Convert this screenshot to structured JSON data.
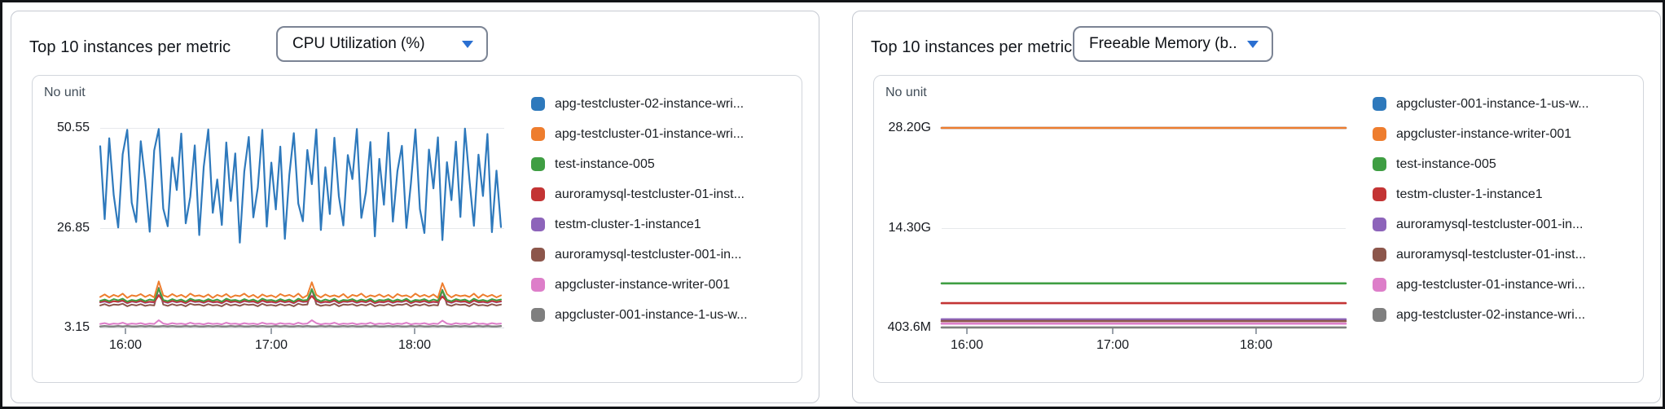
{
  "colors": {
    "blue": "#2e79bc",
    "orange": "#ee7d2e",
    "green": "#3f9e43",
    "red": "#c33434",
    "purple": "#8d64ba",
    "brown": "#8c564b",
    "pink": "#dd7ec9",
    "gray": "#7f7f7f",
    "dropdown_caret": "#2a6fd1"
  },
  "panels": [
    {
      "title": "Top 10 instances per metric",
      "dropdown_label": "CPU Utilization (%)"
    },
    {
      "title": "Top 10 instances per metric",
      "dropdown_label": "Freeable Memory (b..."
    }
  ],
  "chart_data": [
    {
      "type": "line",
      "title": "Top 10 instances per metric",
      "metric": "CPU Utilization (%)",
      "unit_label": "No unit",
      "x_ticks": [
        "16:00",
        "17:00",
        "18:00"
      ],
      "y_ticks": [
        "50.55",
        "26.85",
        "3.15"
      ],
      "y_tick_values": [
        50.55,
        26.85,
        3.15
      ],
      "ylim": [
        2.0,
        52.0
      ],
      "grid": true,
      "legend_position": "right",
      "draw_order": "reverse",
      "series": [
        {
          "name": "apg-testcluster-02-instance-wri...",
          "color": "#2e79bc",
          "width": 2.2,
          "values": [
            46.2,
            28.9,
            48.1,
            34.6,
            26.9,
            44.3,
            50.1,
            32.8,
            28.2,
            47.4,
            38.1,
            25.9,
            45.2,
            50.3,
            31.4,
            27.2,
            43.5,
            35.8,
            49.2,
            27.9,
            34.2,
            46.4,
            25.1,
            41.3,
            50.2,
            30.4,
            38.3,
            27.5,
            47.1,
            33.2,
            44.5,
            23.3,
            40.2,
            48.4,
            29.3,
            36.4,
            50.1,
            27.1,
            42.3,
            31.2,
            46.1,
            24.2,
            39.4,
            49.3,
            32.6,
            28.4,
            45.3,
            37.2,
            50.2,
            26.3,
            41.2,
            30.1,
            48.2,
            34.3,
            27.4,
            44.1,
            38.4,
            50.3,
            29.2,
            35.3,
            47.2,
            24.8,
            43.2,
            32.3,
            49.4,
            28.3,
            40.3,
            46.3,
            26.8,
            37.3,
            50.2,
            31.3,
            25.6,
            45.4,
            36.2,
            48.3,
            23.9,
            42.4,
            33.4,
            47.3,
            29.4,
            50.4,
            38.2,
            27.3,
            44.2,
            34.4,
            49.1,
            25.8,
            40.4,
            27.0
          ]
        },
        {
          "name": "apg-testcluster-01-instance-wri...",
          "color": "#ee7d2e",
          "width": 2,
          "values": [
            10.4,
            11.0,
            10.3,
            10.9,
            10.5,
            11.2,
            10.2,
            10.8,
            10.6,
            11.1,
            10.4,
            10.9,
            10.3,
            14.1,
            10.8,
            10.4,
            11.1,
            10.5,
            10.9,
            10.3,
            11.2,
            10.6,
            10.8,
            10.4,
            11.0,
            10.2,
            10.9,
            10.5,
            11.1,
            10.3,
            10.8,
            10.6,
            11.2,
            10.4,
            10.9,
            10.2,
            11.0,
            10.5,
            10.8,
            10.3,
            11.1,
            10.6,
            10.9,
            10.4,
            11.2,
            10.2,
            10.8,
            13.9,
            10.9,
            10.3,
            11.0,
            10.5,
            10.8,
            10.4,
            11.1,
            10.2,
            10.9,
            10.6,
            11.2,
            10.3,
            10.8,
            10.5,
            11.0,
            10.4,
            10.9,
            10.2,
            11.1,
            10.6,
            10.8,
            10.3,
            11.2,
            10.5,
            10.9,
            10.4,
            11.0,
            10.2,
            13.7,
            11.1,
            10.3,
            10.9,
            10.6,
            10.8,
            10.4,
            11.2,
            10.2,
            11.0,
            10.5,
            10.9,
            10.3,
            10.8
          ]
        },
        {
          "name": "test-instance-005",
          "color": "#3f9e43",
          "width": 2,
          "values": [
            9.5,
            9.8,
            9.4,
            9.9,
            9.6,
            10.0,
            9.3,
            9.7,
            9.5,
            9.9,
            9.4,
            9.8,
            9.6,
            12.4,
            9.7,
            9.4,
            9.9,
            9.5,
            9.8,
            9.3,
            10.0,
            9.6,
            9.7,
            9.4,
            9.9,
            9.5,
            9.8,
            9.3,
            10.0,
            9.6,
            9.7,
            9.4,
            9.9,
            9.5,
            9.8,
            9.3,
            10.0,
            9.6,
            9.7,
            9.4,
            9.9,
            9.5,
            9.8,
            9.3,
            10.0,
            9.6,
            9.7,
            12.2,
            9.9,
            9.4,
            9.8,
            9.5,
            10.0,
            9.3,
            9.7,
            9.6,
            9.9,
            9.4,
            9.8,
            9.5,
            10.0,
            9.3,
            9.7,
            9.6,
            9.9,
            9.4,
            9.8,
            9.5,
            10.0,
            9.3,
            9.7,
            9.6,
            9.9,
            9.4,
            9.8,
            9.5,
            12.0,
            9.7,
            9.4,
            9.9,
            9.6,
            9.8,
            9.3,
            10.0,
            9.5,
            9.7,
            9.4,
            9.9,
            9.6,
            9.8
          ]
        },
        {
          "name": "auroramysql-testcluster-01-inst...",
          "color": "#c33434",
          "width": 2,
          "values": [
            9.2,
            9.5,
            9.1,
            9.4,
            9.3,
            9.6,
            9.0,
            9.4,
            9.2,
            9.5,
            9.1,
            9.3,
            9.2,
            10.8,
            9.4,
            9.1,
            9.5,
            9.2,
            9.4,
            9.0,
            9.6,
            9.3,
            9.4,
            9.1,
            9.5,
            9.2,
            9.3,
            9.0,
            9.6,
            9.2,
            9.4,
            9.1,
            9.5,
            9.3,
            9.4,
            9.0,
            9.6,
            9.2,
            9.3,
            9.1,
            9.5,
            9.2,
            9.4,
            9.0,
            9.6,
            9.3,
            9.4,
            10.6,
            9.5,
            9.1,
            9.3,
            9.2,
            9.6,
            9.0,
            9.4,
            9.3,
            9.5,
            9.1,
            9.4,
            9.2,
            9.6,
            9.0,
            9.3,
            9.2,
            9.5,
            9.1,
            9.4,
            9.3,
            9.6,
            9.0,
            9.4,
            9.2,
            9.5,
            9.1,
            9.3,
            9.2,
            10.5,
            9.4,
            9.1,
            9.5,
            9.3,
            9.4,
            9.0,
            9.6,
            9.2,
            9.3,
            9.1,
            9.5,
            9.2,
            9.4
          ]
        },
        {
          "name": "testm-cluster-1-instance1",
          "color": "#8d64ba",
          "width": 2,
          "values": [
            9.1,
            9.3,
            9.0,
            9.4,
            9.2,
            9.5,
            8.9,
            9.3,
            9.1,
            9.4,
            9.0,
            9.2,
            9.1,
            10.9,
            9.3,
            9.0,
            9.4,
            9.1,
            9.3,
            8.9,
            9.5,
            9.2,
            9.3,
            9.0,
            9.4,
            9.1,
            9.2,
            8.9,
            9.5,
            9.1,
            9.3,
            9.0,
            9.4,
            9.2,
            9.3,
            8.9,
            9.5,
            9.1,
            9.2,
            9.0,
            9.4,
            9.1,
            9.3,
            8.9,
            9.5,
            9.2,
            9.3,
            10.7,
            9.4,
            9.0,
            9.2,
            9.1,
            9.5,
            8.9,
            9.3,
            9.2,
            9.4,
            9.0,
            9.3,
            9.1,
            9.5,
            8.9,
            9.2,
            9.1,
            9.4,
            9.0,
            9.3,
            9.2,
            9.5,
            8.9,
            9.3,
            9.1,
            9.4,
            9.0,
            9.2,
            9.1,
            10.6,
            9.3,
            9.0,
            9.4,
            9.2,
            9.3,
            8.9,
            9.5,
            9.1,
            9.2,
            9.0,
            9.4,
            9.1,
            9.3
          ]
        },
        {
          "name": "auroramysql-testcluster-001-in...",
          "color": "#8c564b",
          "width": 2,
          "values": [
            8.4,
            8.7,
            8.3,
            8.6,
            8.5,
            8.8,
            8.2,
            8.6,
            8.4,
            8.7,
            8.3,
            8.5,
            8.4,
            12.6,
            8.6,
            8.3,
            8.7,
            8.4,
            8.6,
            8.2,
            8.8,
            8.5,
            8.6,
            8.3,
            8.7,
            8.4,
            8.5,
            8.2,
            8.8,
            8.4,
            8.6,
            8.3,
            8.7,
            8.5,
            8.6,
            8.2,
            8.8,
            8.4,
            8.5,
            8.3,
            8.7,
            8.4,
            8.6,
            8.2,
            8.8,
            8.5,
            8.6,
            12.3,
            8.7,
            8.3,
            8.5,
            8.4,
            8.8,
            8.2,
            8.6,
            8.5,
            8.7,
            8.3,
            8.6,
            8.4,
            8.8,
            8.2,
            8.5,
            8.4,
            8.7,
            8.3,
            8.6,
            8.5,
            8.8,
            8.2,
            8.6,
            8.4,
            8.7,
            8.3,
            8.5,
            8.4,
            12.1,
            8.6,
            8.3,
            8.7,
            8.5,
            8.6,
            8.2,
            8.8,
            8.4,
            8.5,
            8.3,
            8.7,
            8.4,
            8.6
          ]
        },
        {
          "name": "apgcluster-instance-writer-001",
          "color": "#dd7ec9",
          "width": 2,
          "values": [
            4.0,
            4.2,
            3.9,
            4.1,
            4.0,
            4.3,
            3.9,
            4.1,
            4.0,
            4.2,
            3.9,
            4.1,
            4.0,
            4.9,
            4.1,
            3.9,
            4.2,
            4.0,
            4.1,
            3.9,
            4.3,
            4.0,
            4.1,
            3.9,
            4.2,
            4.0,
            4.1,
            3.9,
            4.3,
            4.0,
            4.1,
            3.9,
            4.2,
            4.0,
            4.1,
            3.9,
            4.3,
            4.0,
            4.1,
            3.9,
            4.2,
            4.0,
            4.1,
            3.9,
            4.3,
            4.0,
            4.1,
            4.9,
            4.2,
            3.9,
            4.1,
            4.0,
            4.3,
            3.9,
            4.1,
            4.0,
            4.2,
            3.9,
            4.1,
            4.0,
            4.3,
            3.9,
            4.1,
            4.0,
            4.2,
            3.9,
            4.1,
            4.0,
            4.3,
            3.9,
            4.1,
            4.0,
            4.2,
            3.9,
            4.1,
            4.0,
            4.8,
            4.1,
            3.9,
            4.2,
            4.0,
            4.1,
            3.9,
            4.3,
            4.0,
            4.1,
            3.9,
            4.2,
            4.0,
            4.1
          ]
        },
        {
          "name": "apgcluster-001-instance-1-us-w...",
          "color": "#7f7f7f",
          "width": 2.4,
          "values": [
            3.4,
            3.5,
            3.4,
            3.4,
            3.5,
            3.4,
            3.5,
            3.4,
            3.4,
            3.5,
            3.4,
            3.5,
            3.4,
            3.4,
            3.5,
            3.4,
            3.5,
            3.4,
            3.4,
            3.5,
            3.4,
            3.5,
            3.4,
            3.4,
            3.5,
            3.4,
            3.5,
            3.4,
            3.4,
            3.5,
            3.4,
            3.5,
            3.4,
            3.4,
            3.5,
            3.4,
            3.5,
            3.4,
            3.4,
            3.5,
            3.4,
            3.5,
            3.4,
            3.4,
            3.5,
            3.4,
            3.5,
            3.4,
            3.4,
            3.5,
            3.4,
            3.5,
            3.4,
            3.4,
            3.5,
            3.4,
            3.5,
            3.4,
            3.4,
            3.5,
            3.4,
            3.5,
            3.4,
            3.4,
            3.5,
            3.4,
            3.5,
            3.4,
            3.4,
            3.5,
            3.4,
            3.5,
            3.4,
            3.4,
            3.5,
            3.4,
            3.5,
            3.4,
            3.4,
            3.5,
            3.4,
            3.5,
            3.4,
            3.4,
            3.5,
            3.4,
            3.5,
            3.4,
            3.4,
            3.5
          ]
        }
      ]
    },
    {
      "type": "line",
      "title": "Top 10 instances per metric",
      "metric": "Freeable Memory (b...",
      "unit_label": "No unit",
      "x_ticks": [
        "16:00",
        "17:00",
        "18:00"
      ],
      "y_ticks": [
        "28.20G",
        "14.30G",
        "403.6M"
      ],
      "y_tick_values": [
        28.2,
        14.3,
        0.4036
      ],
      "ylim": [
        0,
        29.5
      ],
      "grid": true,
      "legend_position": "right",
      "draw_order": "forward",
      "stroke_width": 2.6,
      "series": [
        {
          "name": "apgcluster-001-instance-1-us-w...",
          "color": "#2e79bc",
          "value": 28.2
        },
        {
          "name": "apgcluster-instance-writer-001",
          "color": "#ee7d2e",
          "value": 28.2
        },
        {
          "name": "test-instance-005",
          "color": "#3f9e43",
          "value": 6.55
        },
        {
          "name": "testm-cluster-1-instance1",
          "color": "#c33434",
          "value": 3.8
        },
        {
          "name": "auroramysql-testcluster-001-in...",
          "color": "#8d64ba",
          "value": 1.55
        },
        {
          "name": "auroramysql-testcluster-01-inst...",
          "color": "#8c564b",
          "value": 1.3
        },
        {
          "name": "apg-testcluster-01-instance-wri...",
          "color": "#dd7ec9",
          "value": 0.95
        },
        {
          "name": "apg-testcluster-02-instance-wri...",
          "color": "#7f7f7f",
          "value": 0.42
        }
      ]
    }
  ]
}
